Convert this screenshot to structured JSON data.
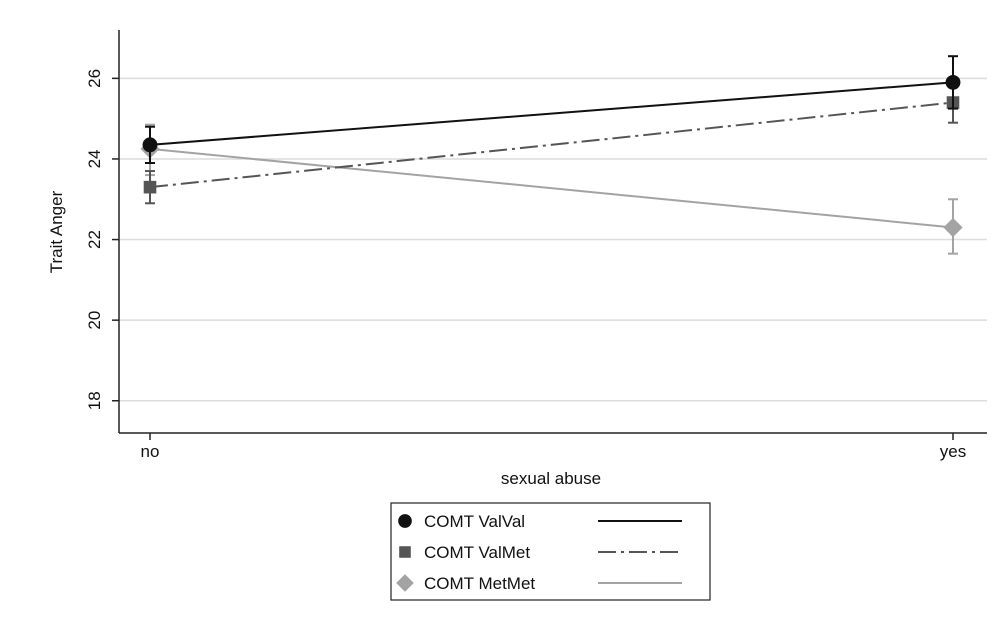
{
  "chart_data": {
    "type": "line",
    "title": "",
    "xlabel": "sexual abuse",
    "ylabel": "Trait Anger",
    "categories": [
      "no",
      "yes"
    ],
    "yticks": [
      18,
      20,
      22,
      24,
      26
    ],
    "ylim": [
      17.2,
      27.2
    ],
    "grid": "horizontal",
    "legend_position": "bottom",
    "series": [
      {
        "name": "COMT ValVal",
        "values": [
          24.35,
          25.9
        ],
        "error_low": [
          23.9,
          25.25
        ],
        "error_high": [
          24.8,
          26.55
        ],
        "marker": "circle",
        "line_style": "solid",
        "color": "#111111"
      },
      {
        "name": "COMT ValMet",
        "values": [
          23.3,
          25.4
        ],
        "error_low": [
          22.9,
          24.9
        ],
        "error_high": [
          23.7,
          25.85
        ],
        "marker": "square",
        "line_style": "dash-dot",
        "color": "#555555"
      },
      {
        "name": "COMT MetMet",
        "values": [
          24.25,
          22.3
        ],
        "error_low": [
          23.6,
          21.65
        ],
        "error_high": [
          24.85,
          23.0
        ],
        "marker": "diamond",
        "line_style": "solid",
        "color": "#a3a3a3"
      }
    ]
  }
}
